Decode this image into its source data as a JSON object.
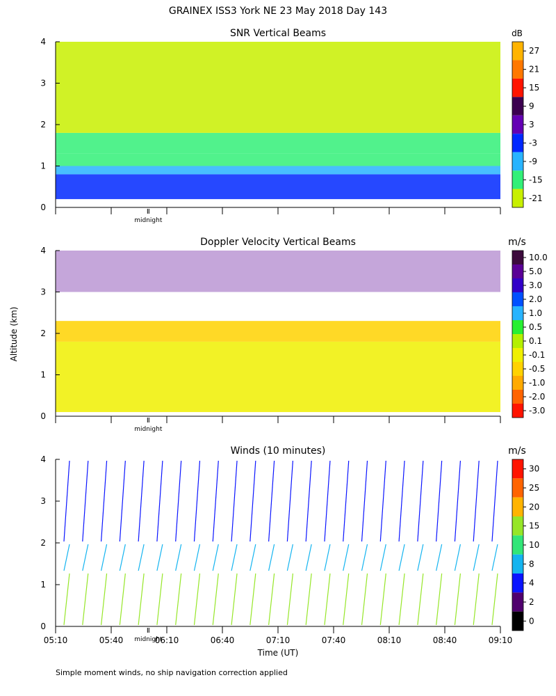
{
  "title": "GRAINEX ISS3 York NE  23 May 2018 Day 143",
  "ylabel": "Altitude (km)",
  "xlabel": "Time (UT)",
  "footnote": "Simple moment winds, no ship navigation correction applied",
  "midnight_label": "midnight",
  "x_ticks": [
    "05:10",
    "05:40",
    "06:10",
    "06:40",
    "07:10",
    "07:40",
    "08:10",
    "08:40",
    "09:10"
  ],
  "y_ticks": [
    "0",
    "1",
    "2",
    "3",
    "4"
  ],
  "chart_data": [
    {
      "type": "heatmap",
      "title": "SNR Vertical Beams",
      "colorbar_unit": "dB",
      "colorbar_labels": [
        "27",
        "21",
        "15",
        "9",
        "3",
        "-3",
        "-9",
        "-15",
        "-21"
      ],
      "colorbar_colors": [
        "#ffb400",
        "#ff7800",
        "#ff1400",
        "#3c0050",
        "#6400b4",
        "#0028ff",
        "#28b4ff",
        "#32f078",
        "#c8f000"
      ],
      "xlim": [
        "05:10",
        "09:10"
      ],
      "ylim": [
        0,
        4
      ],
      "profile": [
        {
          "altitude_range": [
            0.2,
            0.8
          ],
          "snr_db": 0,
          "color": "#0028ff"
        },
        {
          "altitude_range": [
            0.8,
            1.0
          ],
          "snr_db": -6,
          "color": "#28b4ff"
        },
        {
          "altitude_range": [
            1.0,
            1.3
          ],
          "snr_db": -12,
          "color": "#32f078"
        },
        {
          "altitude_range": [
            1.3,
            1.8
          ],
          "snr_db": -18,
          "color": "#32f078"
        },
        {
          "altitude_range": [
            1.8,
            4.0
          ],
          "snr_db": -21,
          "color": "#c8f000"
        }
      ]
    },
    {
      "type": "heatmap",
      "title": "Doppler Velocity Vertical Beams",
      "colorbar_unit": "m/s",
      "colorbar_labels": [
        "10.0",
        "5.0",
        "3.0",
        "2.0",
        "1.0",
        "0.5",
        "0.1",
        "-0.1",
        "-0.5",
        "-1.0",
        "-2.0",
        "-3.0"
      ],
      "colorbar_colors": [
        "#3c0a3c",
        "#5a0096",
        "#3200c8",
        "#0050ff",
        "#28b4ff",
        "#28f032",
        "#b4f000",
        "#f0f000",
        "#ffd200",
        "#ffaa00",
        "#ff6400",
        "#ff1400"
      ],
      "xlim": [
        "05:10",
        "09:10"
      ],
      "ylim": [
        0,
        4
      ],
      "profile": [
        {
          "altitude_range": [
            0.1,
            1.8
          ],
          "velocity_ms": -0.2,
          "color": "#f0f000"
        },
        {
          "altitude_range": [
            1.8,
            2.3
          ],
          "velocity_ms": -0.5,
          "color": "#ffd200"
        },
        {
          "altitude_range": [
            3.0,
            4.0
          ],
          "velocity_ms": 5.0,
          "color": "#5a0096"
        }
      ]
    },
    {
      "type": "scatter",
      "title": "Winds (10 minutes)",
      "colorbar_unit": "m/s",
      "colorbar_labels": [
        "30",
        "25",
        "20",
        "15",
        "10",
        "8",
        "4",
        "2",
        "0"
      ],
      "colorbar_colors": [
        "#ff1400",
        "#ff6400",
        "#ffb400",
        "#96e628",
        "#32e678",
        "#14b4f0",
        "#0a14ff",
        "#50006e",
        "#000000"
      ],
      "xlim": [
        "05:10",
        "09:10"
      ],
      "ylim": [
        0,
        4
      ],
      "profile": [
        {
          "altitude_range": [
            0.0,
            1.3
          ],
          "speed_ms": 15,
          "color": "#96e628"
        },
        {
          "altitude_range": [
            1.3,
            2.0
          ],
          "speed_ms": 10,
          "color": "#14b4f0"
        },
        {
          "altitude_range": [
            2.0,
            4.0
          ],
          "speed_ms": 4,
          "color": "#0a14ff"
        }
      ]
    }
  ]
}
